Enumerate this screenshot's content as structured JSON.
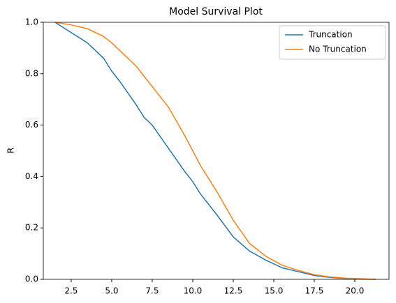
{
  "chart_data": {
    "type": "line",
    "title": "Model Survival Plot",
    "ylabel": "R",
    "x": [
      1.5,
      2.5,
      3.5,
      4.5,
      5.0,
      5.5,
      6.5,
      7.0,
      7.5,
      8.5,
      9.5,
      10.0,
      10.5,
      11.5,
      12.5,
      13.5,
      14.5,
      15.5,
      16.5,
      17.5,
      18.5,
      19.5,
      20.5,
      21.3
    ],
    "series": [
      {
        "name": "Truncation",
        "color": "#1f77b4",
        "values": [
          1.0,
          0.96,
          0.92,
          0.86,
          0.81,
          0.77,
          0.68,
          0.63,
          0.6,
          0.51,
          0.42,
          0.38,
          0.33,
          0.25,
          0.165,
          0.11,
          0.075,
          0.045,
          0.03,
          0.015,
          0.007,
          0.003,
          0.001,
          0.0
        ]
      },
      {
        "name": "No Truncation",
        "color": "#ff7f0e",
        "values": [
          1.0,
          0.99,
          0.975,
          0.945,
          0.92,
          0.89,
          0.83,
          0.79,
          0.75,
          0.67,
          0.56,
          0.5,
          0.44,
          0.34,
          0.23,
          0.14,
          0.09,
          0.055,
          0.035,
          0.018,
          0.009,
          0.004,
          0.002,
          0.0
        ]
      }
    ],
    "xlim": [
      0.78,
      22.11
    ],
    "xticks": [
      2.5,
      {
        "value": 5,
        "label": "5.0"
      },
      7.5,
      {
        "value": 10,
        "label": "10.0"
      },
      12.5,
      {
        "value": 15,
        "label": "15.0"
      },
      17.5,
      {
        "value": 20,
        "label": "20.0"
      }
    ],
    "ylim": [
      0,
      1
    ],
    "yticks": [
      {
        "value": 0,
        "label": "0.0"
      },
      0.2,
      0.4,
      0.6,
      0.8,
      {
        "value": 1,
        "label": "1.0"
      }
    ],
    "grid": false,
    "legend": "upper right"
  }
}
